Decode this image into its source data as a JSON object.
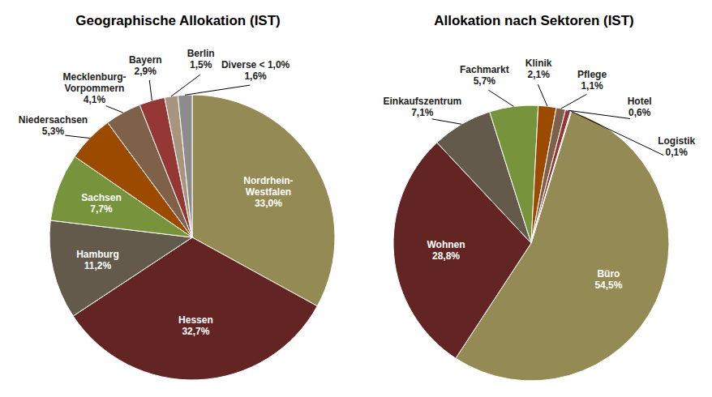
{
  "chart_data": [
    {
      "type": "pie",
      "title": "Geographische Allokation (IST)",
      "categories": [
        "Nordrhein-Westfalen",
        "Hessen",
        "Hamburg",
        "Sachsen",
        "Niedersachsen",
        "Mecklenburg-Vorpommern",
        "Bayern",
        "Berlin",
        "Diverse < 1,0%"
      ],
      "values": [
        33.0,
        32.7,
        11.2,
        7.7,
        5.3,
        4.1,
        2.9,
        1.5,
        1.6
      ],
      "value_labels": [
        "33,0%",
        "32,7%",
        "11,2%",
        "7,7%",
        "5,3%",
        "4,1%",
        "2,9%",
        "1,5%",
        "1,6%"
      ],
      "colors": [
        "#948a54",
        "#632523",
        "#635a4b",
        "#77933c",
        "#9c4a00",
        "#7f6049",
        "#953735",
        "#a79580",
        "#8c8c8c"
      ],
      "data_labels": true
    },
    {
      "type": "pie",
      "title": "Allokation nach Sektoren (IST)",
      "categories": [
        "Büro",
        "Wohnen",
        "Einkaufszentrum",
        "Fachmarkt",
        "Klinik",
        "Pflege",
        "Hotel",
        "Logistik"
      ],
      "values": [
        54.5,
        28.8,
        7.1,
        5.7,
        2.1,
        1.1,
        0.6,
        0.1
      ],
      "value_labels": [
        "54,5%",
        "28,8%",
        "7,1%",
        "5,7%",
        "2,1%",
        "1,1%",
        "0,6%",
        "0,1%"
      ],
      "colors": [
        "#948a54",
        "#632523",
        "#635a4b",
        "#77933c",
        "#9c4a00",
        "#7f6049",
        "#953735",
        "#a79580"
      ],
      "data_labels": true
    }
  ]
}
